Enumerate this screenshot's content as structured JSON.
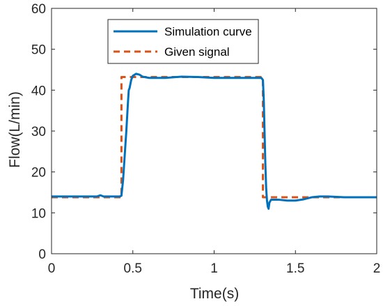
{
  "chart_data": {
    "type": "line",
    "title": "",
    "xlabel": "Time(s)",
    "ylabel": "Flow(L/min)",
    "xlim": [
      0,
      2
    ],
    "ylim": [
      0,
      60
    ],
    "x_ticks": [
      0,
      0.5,
      1,
      1.5,
      2
    ],
    "x_tick_labels": [
      "0",
      "0.5",
      "1",
      "1.5",
      "2"
    ],
    "y_ticks": [
      0,
      10,
      20,
      30,
      40,
      50,
      60
    ],
    "y_tick_labels": [
      "0",
      "10",
      "20",
      "30",
      "40",
      "50",
      "60"
    ],
    "grid": false,
    "legend_position": "top-center",
    "series": [
      {
        "name": "Simulation curve",
        "color": "#0072BD",
        "style": "solid",
        "points": [
          [
            0,
            14.0
          ],
          [
            0.1,
            14.0
          ],
          [
            0.2,
            14.0
          ],
          [
            0.28,
            14.0
          ],
          [
            0.3,
            14.3
          ],
          [
            0.32,
            14.0
          ],
          [
            0.42,
            14.0
          ],
          [
            0.43,
            14.2
          ],
          [
            0.44,
            18.0
          ],
          [
            0.45,
            24.0
          ],
          [
            0.46,
            30.0
          ],
          [
            0.47,
            37.0
          ],
          [
            0.475,
            40.0
          ],
          [
            0.48,
            40.5
          ],
          [
            0.49,
            42.5
          ],
          [
            0.5,
            43.5
          ],
          [
            0.52,
            44.0
          ],
          [
            0.54,
            43.8
          ],
          [
            0.56,
            43.3
          ],
          [
            0.6,
            43.0
          ],
          [
            0.7,
            43.0
          ],
          [
            0.8,
            43.3
          ],
          [
            0.9,
            43.2
          ],
          [
            1.0,
            43.0
          ],
          [
            1.1,
            43.0
          ],
          [
            1.2,
            43.0
          ],
          [
            1.29,
            43.0
          ],
          [
            1.3,
            42.5
          ],
          [
            1.305,
            38.0
          ],
          [
            1.31,
            30.0
          ],
          [
            1.315,
            22.0
          ],
          [
            1.32,
            16.0
          ],
          [
            1.325,
            13.0
          ],
          [
            1.33,
            11.5
          ],
          [
            1.335,
            11.0
          ],
          [
            1.34,
            12.5
          ],
          [
            1.35,
            13.2
          ],
          [
            1.4,
            13.2
          ],
          [
            1.45,
            13.0
          ],
          [
            1.5,
            13.0
          ],
          [
            1.55,
            13.3
          ],
          [
            1.6,
            13.8
          ],
          [
            1.65,
            14.0
          ],
          [
            1.7,
            14.0
          ],
          [
            1.8,
            13.8
          ],
          [
            1.9,
            13.8
          ],
          [
            2.0,
            13.8
          ]
        ]
      },
      {
        "name": "Given signal",
        "color": "#D95319",
        "style": "dashed",
        "points": [
          [
            0,
            13.8
          ],
          [
            0.43,
            13.8
          ],
          [
            0.43,
            43.2
          ],
          [
            1.3,
            43.2
          ],
          [
            1.3,
            13.8
          ],
          [
            2.0,
            13.8
          ]
        ]
      }
    ]
  }
}
